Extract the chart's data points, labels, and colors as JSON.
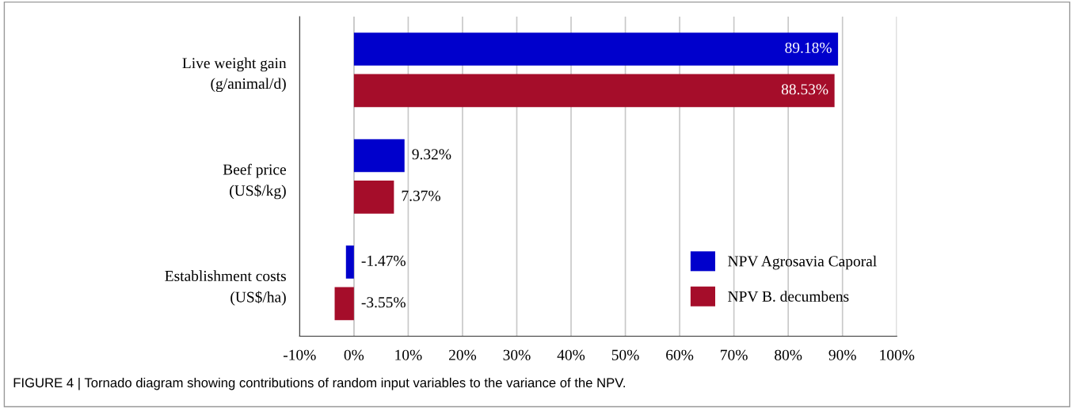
{
  "chart_data": {
    "type": "bar",
    "orientation": "horizontal",
    "categories": [
      "Live weight gain\n(g/animal/d)",
      "Beef price\n(US$/kg)",
      "Establishment costs\n(US$/ha)"
    ],
    "series": [
      {
        "name": "NPV Agrosavia Caporal",
        "color": "#0000cc",
        "values": [
          89.18,
          9.32,
          -1.47
        ],
        "value_labels": [
          "89.18%",
          "9.32%",
          "-1.47%"
        ]
      },
      {
        "name": "NPV B. decumbens",
        "color": "#a50d2a",
        "values": [
          88.53,
          7.37,
          -3.55
        ],
        "value_labels": [
          "88.53%",
          "7.37%",
          "-3.55%"
        ]
      }
    ],
    "xlim": [
      -10,
      100
    ],
    "xticks": [
      {
        "value": -10,
        "label": "-10%"
      },
      {
        "value": 0,
        "label": "0%"
      },
      {
        "value": 10,
        "label": "10%"
      },
      {
        "value": 20,
        "label": "20%"
      },
      {
        "value": 30,
        "label": "30%"
      },
      {
        "value": 40,
        "label": "40%"
      },
      {
        "value": 50,
        "label": "50%"
      },
      {
        "value": 60,
        "label": "60%"
      },
      {
        "value": 70,
        "label": "70%"
      },
      {
        "value": 80,
        "label": "80%"
      },
      {
        "value": 90,
        "label": "90%"
      },
      {
        "value": 100,
        "label": "100%"
      }
    ],
    "grid": "x",
    "legend": "bottom right",
    "annotations": [
      "FIGURE 4 | Tornado diagram showing contributions of random input variables to the variance of the NPV."
    ]
  }
}
